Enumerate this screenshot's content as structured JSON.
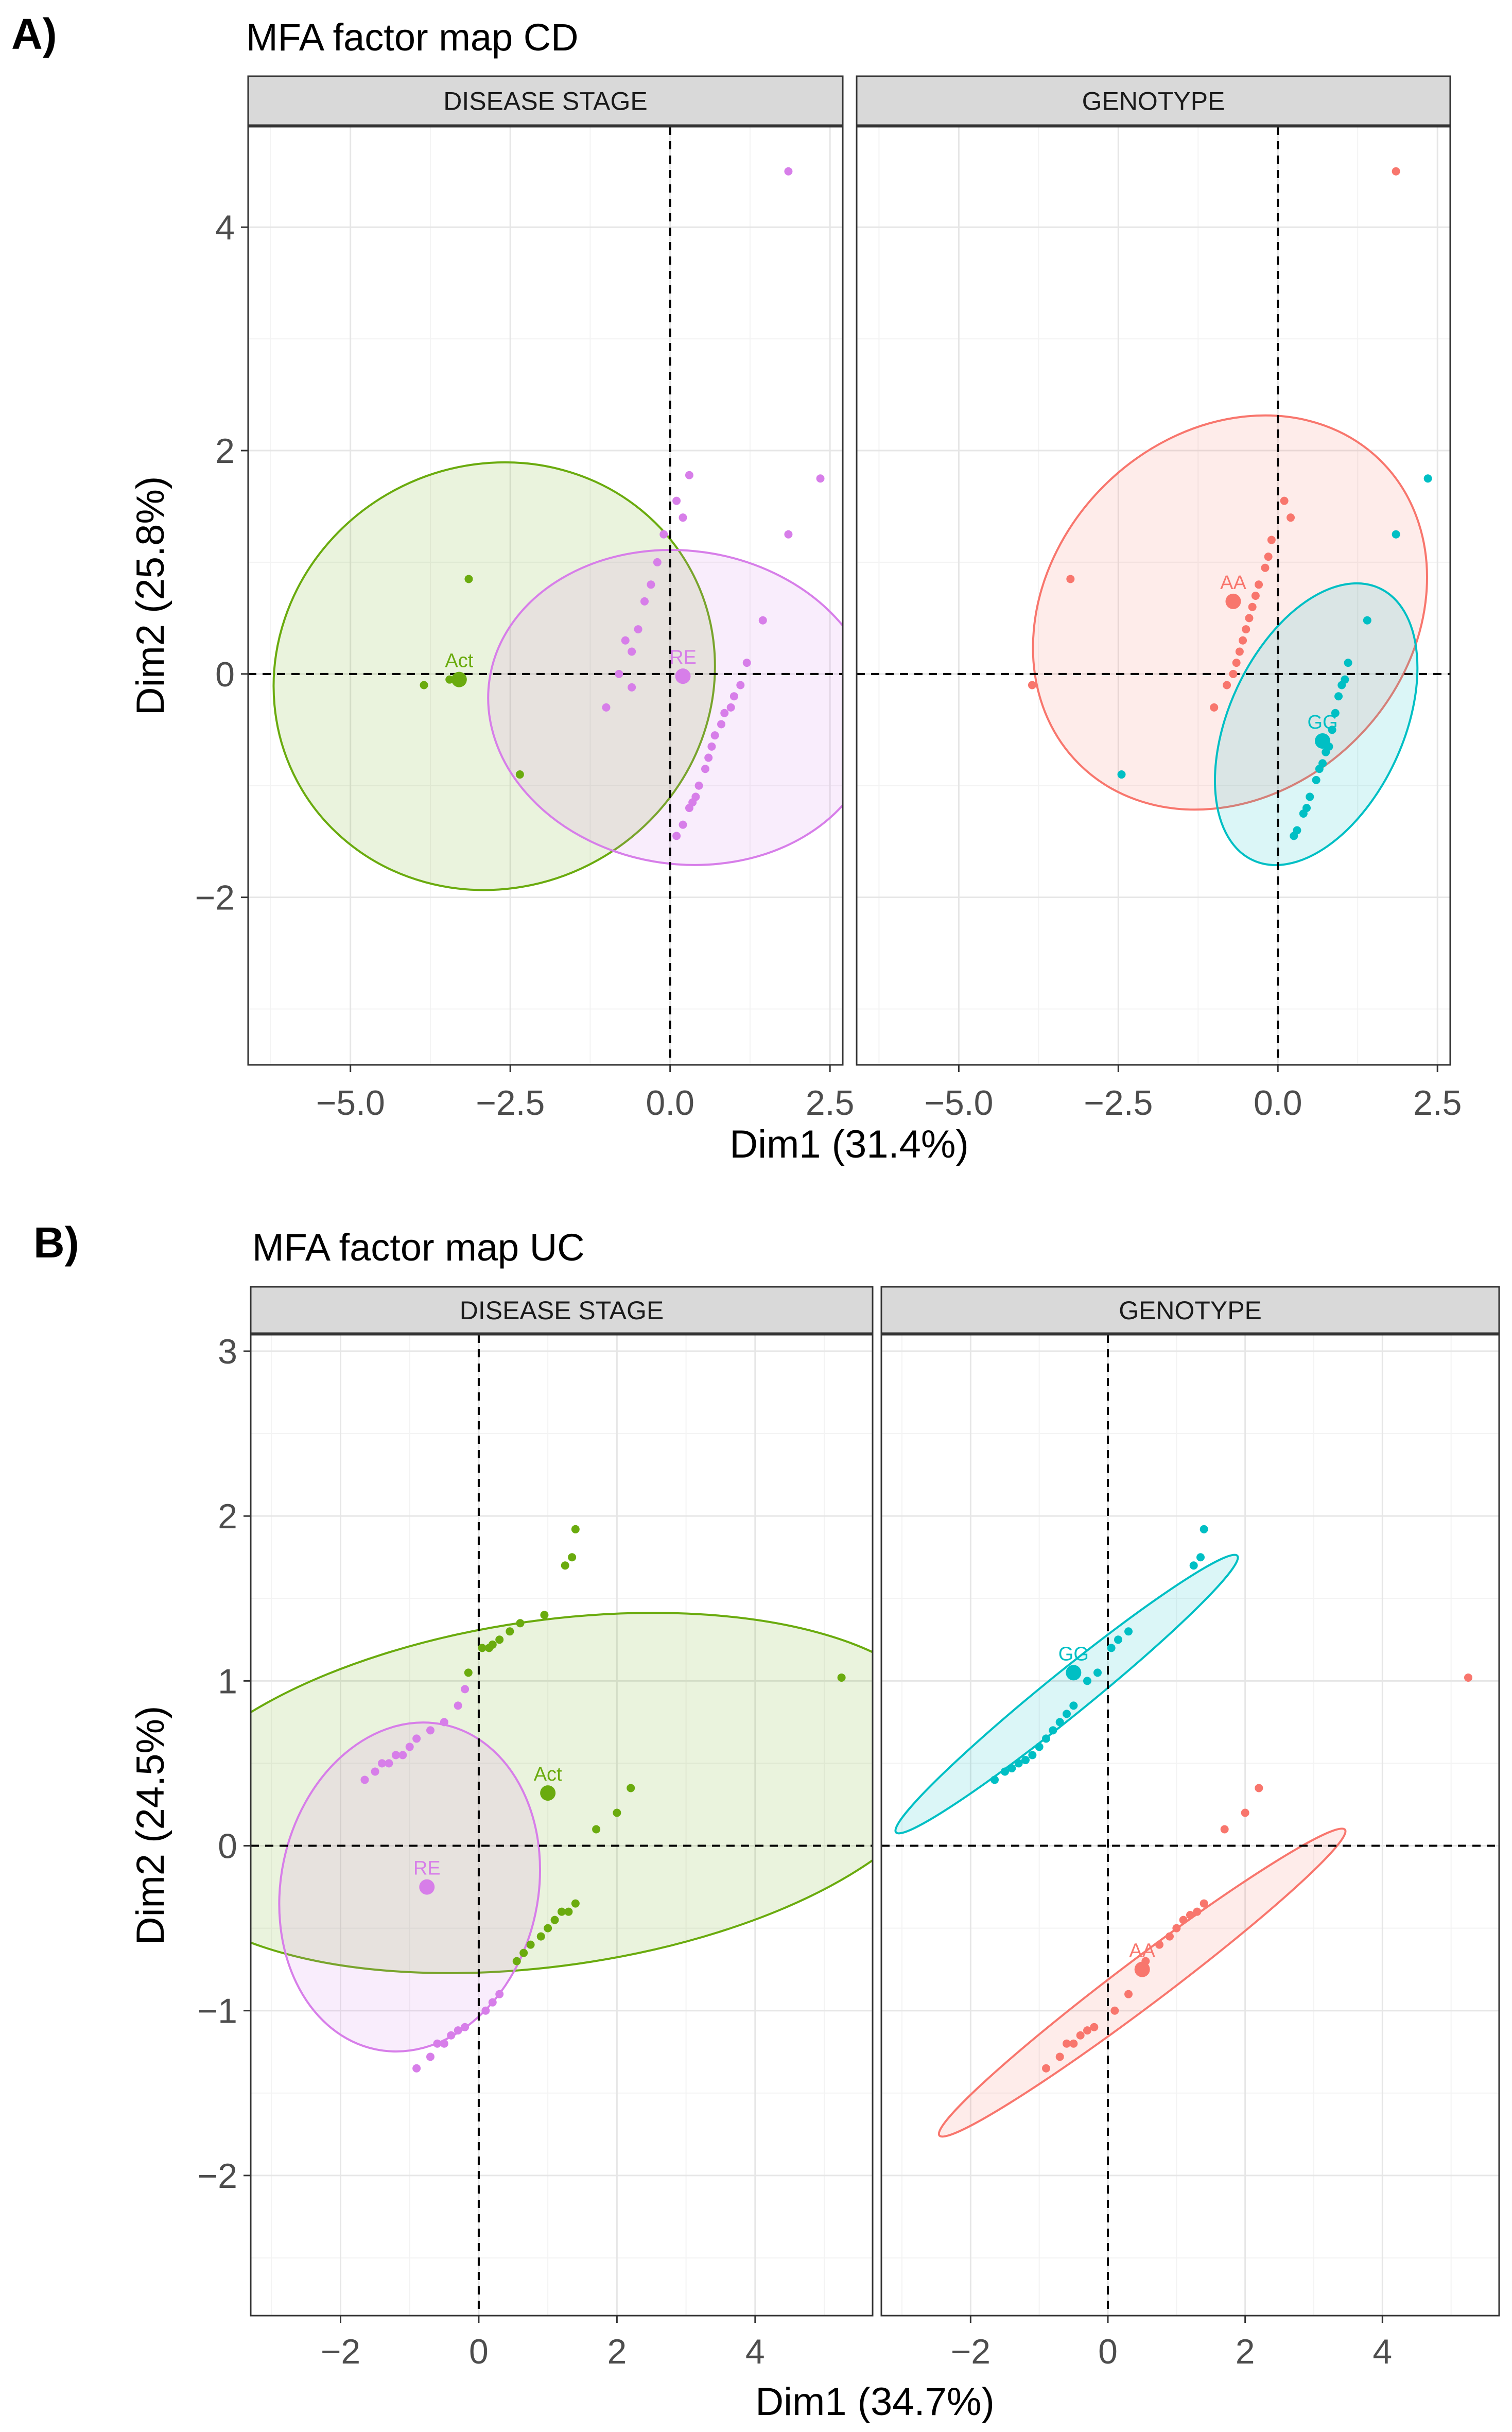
{
  "figure": {
    "panels": [
      {
        "label": "A)",
        "title": "MFA factor map CD"
      },
      {
        "label": "B)",
        "title": "MFA factor map UC"
      }
    ]
  },
  "colors": {
    "Act": "#6aab0e",
    "RE": "#d77ee9",
    "AA": "#f8766d",
    "GG": "#00bfc4",
    "strip_bg": "#d9d9d9",
    "grid_major": "#e6e6e6",
    "grid_minor": "#f3f3f3",
    "axis_text": "#4d4d4d"
  },
  "chart_data": [
    {
      "type": "scatter",
      "title": "MFA factor map CD",
      "xlabel": "Dim1 (31.4%)",
      "ylabel": "Dim2 (25.8%)",
      "xlim": [
        -6.6,
        2.7
      ],
      "ylim": [
        -3.5,
        4.9
      ],
      "xticks": [
        -5.0,
        -2.5,
        0.0,
        2.5
      ],
      "xtick_labels": [
        "−5.0",
        "−2.5",
        "0.0",
        "2.5"
      ],
      "yticks": [
        -2,
        0,
        2,
        4
      ],
      "ytick_labels": [
        "−2",
        "0",
        "2",
        "4"
      ],
      "facets": [
        {
          "strip": "DISEASE STAGE",
          "groups": [
            {
              "name": "Act",
              "color_key": "Act",
              "center": [
                -3.3,
                -0.05
              ],
              "ellipse": {
                "cx": -2.75,
                "cy": -0.02,
                "rx": 3.3,
                "ry": 2.0,
                "angle": -62
              },
              "points": [
                [
                  -3.85,
                  -0.1
                ],
                [
                  -3.15,
                  0.85
                ],
                [
                  -2.35,
                  -0.9
                ],
                [
                  -3.45,
                  -0.05
                ]
              ]
            },
            {
              "name": "RE",
              "color_key": "RE",
              "center": [
                0.2,
                -0.02
              ],
              "ellipse": {
                "cx": 0.2,
                "cy": -0.3,
                "rx": 2.45,
                "ry": 1.75,
                "angle": 82
              },
              "points": [
                [
                  1.85,
                  4.5
                ],
                [
                  2.35,
                  1.75
                ],
                [
                  0.3,
                  1.78
                ],
                [
                  1.85,
                  1.25
                ],
                [
                  1.45,
                  0.48
                ],
                [
                  -1.0,
                  -0.3
                ],
                [
                  -0.6,
                  -0.12
                ],
                [
                  -0.8,
                  0.0
                ],
                [
                  -0.5,
                  0.4
                ],
                [
                  -0.3,
                  0.8
                ],
                [
                  -0.1,
                  1.25
                ],
                [
                  0.1,
                  1.55
                ],
                [
                  0.2,
                  1.4
                ],
                [
                  -0.7,
                  0.3
                ],
                [
                  -0.4,
                  0.65
                ],
                [
                  -0.2,
                  1.0
                ],
                [
                  -0.6,
                  0.2
                ],
                [
                  1.2,
                  0.1
                ],
                [
                  1.1,
                  -0.1
                ],
                [
                  0.95,
                  -0.3
                ],
                [
                  0.8,
                  -0.45
                ],
                [
                  0.65,
                  -0.65
                ],
                [
                  0.55,
                  -0.85
                ],
                [
                  0.45,
                  -1.0
                ],
                [
                  0.3,
                  -1.2
                ],
                [
                  0.2,
                  -1.35
                ],
                [
                  0.1,
                  -1.45
                ],
                [
                  0.85,
                  -0.35
                ],
                [
                  0.7,
                  -0.55
                ],
                [
                  0.6,
                  -0.75
                ],
                [
                  1.0,
                  -0.2
                ],
                [
                  0.4,
                  -1.1
                ],
                [
                  0.35,
                  -1.15
                ]
              ]
            }
          ]
        },
        {
          "strip": "GENOTYPE",
          "groups": [
            {
              "name": "AA",
              "color_key": "AA",
              "center": [
                -0.7,
                0.65
              ],
              "ellipse": {
                "cx": -0.75,
                "cy": 0.55,
                "rx": 3.35,
                "ry": 1.6,
                "angle": 45
              },
              "points": [
                [
                  1.85,
                  4.5
                ],
                [
                  -3.25,
                  0.85
                ],
                [
                  -3.85,
                  -0.1
                ],
                [
                  0.1,
                  1.55
                ],
                [
                  0.2,
                  1.4
                ],
                [
                  -0.1,
                  1.2
                ],
                [
                  -0.2,
                  0.95
                ],
                [
                  -0.3,
                  0.8
                ],
                [
                  -0.4,
                  0.6
                ],
                [
                  -0.5,
                  0.4
                ],
                [
                  -0.6,
                  0.2
                ],
                [
                  -0.7,
                  0.0
                ],
                [
                  -0.8,
                  -0.1
                ],
                [
                  -1.0,
                  -0.3
                ],
                [
                  -0.45,
                  0.5
                ],
                [
                  -0.55,
                  0.3
                ],
                [
                  -0.65,
                  0.1
                ],
                [
                  -0.35,
                  0.7
                ],
                [
                  -0.15,
                  1.05
                ]
              ]
            },
            {
              "name": "GG",
              "color_key": "GG",
              "center": [
                0.7,
                -0.6
              ],
              "ellipse": {
                "cx": 0.6,
                "cy": -0.45,
                "rx": 2.35,
                "ry": 0.78,
                "angle": 65
              },
              "points": [
                [
                  2.35,
                  1.75
                ],
                [
                  1.85,
                  1.25
                ],
                [
                  1.4,
                  0.48
                ],
                [
                  -2.45,
                  -0.9
                ],
                [
                  1.1,
                  0.1
                ],
                [
                  1.05,
                  -0.05
                ],
                [
                  0.95,
                  -0.2
                ],
                [
                  0.9,
                  -0.35
                ],
                [
                  0.85,
                  -0.5
                ],
                [
                  0.8,
                  -0.65
                ],
                [
                  0.7,
                  -0.8
                ],
                [
                  0.6,
                  -0.95
                ],
                [
                  0.5,
                  -1.1
                ],
                [
                  0.4,
                  -1.25
                ],
                [
                  0.3,
                  -1.4
                ],
                [
                  0.25,
                  -1.45
                ],
                [
                  1.0,
                  -0.1
                ],
                [
                  0.75,
                  -0.7
                ],
                [
                  0.65,
                  -0.85
                ],
                [
                  0.45,
                  -1.2
                ]
              ]
            }
          ]
        }
      ]
    },
    {
      "type": "scatter",
      "title": "MFA factor map UC",
      "xlabel": "Dim1 (34.7%)",
      "ylabel": "Dim2 (24.5%)",
      "xlim": [
        -3.3,
        5.7
      ],
      "ylim": [
        -2.85,
        3.1
      ],
      "xticks": [
        -2,
        0,
        2,
        4
      ],
      "xtick_labels": [
        "−2",
        "0",
        "2",
        "4"
      ],
      "yticks": [
        -2,
        -1,
        0,
        1,
        2,
        3
      ],
      "ytick_labels": [
        "−2",
        "−1",
        "0",
        "1",
        "2",
        "3"
      ],
      "facets": [
        {
          "strip": "DISEASE STAGE",
          "groups": [
            {
              "name": "Act",
              "color_key": "Act",
              "center": [
                1.0,
                0.32
              ],
              "ellipse": {
                "cx": 1.05,
                "cy": 0.32,
                "rx": 2.5,
                "ry": 2.45,
                "angle": -82
              },
              "points": [
                [
                  5.25,
                  1.02
                ],
                [
                  1.4,
                  1.92
                ],
                [
                  1.35,
                  1.75
                ],
                [
                  1.25,
                  1.7
                ],
                [
                  0.95,
                  1.4
                ],
                [
                  0.6,
                  1.35
                ],
                [
                  0.45,
                  1.3
                ],
                [
                  0.3,
                  1.25
                ],
                [
                  0.15,
                  1.2
                ],
                [
                  0.05,
                  1.2
                ],
                [
                  -0.15,
                  1.05
                ],
                [
                  2.2,
                  0.35
                ],
                [
                  2.0,
                  0.2
                ],
                [
                  1.7,
                  0.1
                ],
                [
                  1.4,
                  -0.35
                ],
                [
                  1.3,
                  -0.4
                ],
                [
                  1.1,
                  -0.45
                ],
                [
                  1.0,
                  -0.5
                ],
                [
                  0.9,
                  -0.55
                ],
                [
                  0.75,
                  -0.6
                ],
                [
                  0.65,
                  -0.65
                ],
                [
                  0.55,
                  -0.7
                ],
                [
                  1.2,
                  -0.4
                ],
                [
                  0.2,
                  1.22
                ]
              ]
            },
            {
              "name": "RE",
              "color_key": "RE",
              "center": [
                -0.75,
                -0.25
              ],
              "ellipse": {
                "cx": -1.0,
                "cy": -0.25,
                "rx": 2.4,
                "ry": 0.78,
                "angle": 78
              },
              "points": [
                [
                  -0.2,
                  0.95
                ],
                [
                  -0.3,
                  0.85
                ],
                [
                  -0.5,
                  0.75
                ],
                [
                  -0.7,
                  0.7
                ],
                [
                  -0.9,
                  0.65
                ],
                [
                  -1.1,
                  0.55
                ],
                [
                  -1.3,
                  0.5
                ],
                [
                  -1.5,
                  0.45
                ],
                [
                  -1.65,
                  0.4
                ],
                [
                  -1.0,
                  0.6
                ],
                [
                  -1.2,
                  0.55
                ],
                [
                  -1.4,
                  0.5
                ],
                [
                  0.3,
                  -0.9
                ],
                [
                  0.2,
                  -0.95
                ],
                [
                  0.1,
                  -1.0
                ],
                [
                  -0.2,
                  -1.1
                ],
                [
                  -0.4,
                  -1.15
                ],
                [
                  -0.6,
                  -1.2
                ],
                [
                  -0.7,
                  -1.28
                ],
                [
                  -0.9,
                  -1.35
                ],
                [
                  -0.5,
                  -1.2
                ],
                [
                  -0.3,
                  -1.12
                ]
              ]
            }
          ]
        },
        {
          "strip": "GENOTYPE",
          "groups": [
            {
              "name": "GG",
              "color_key": "GG",
              "center": [
                -0.5,
                1.05
              ],
              "ellipse": {
                "cx": -0.6,
                "cy": 0.92,
                "rx": 3.2,
                "ry": 0.13,
                "angle": 39
              },
              "points": [
                [
                  1.4,
                  1.92
                ],
                [
                  1.35,
                  1.75
                ],
                [
                  1.25,
                  1.7
                ],
                [
                  0.3,
                  1.3
                ],
                [
                  0.15,
                  1.25
                ],
                [
                  0.05,
                  1.2
                ],
                [
                  -0.15,
                  1.05
                ],
                [
                  -0.3,
                  1.0
                ],
                [
                  -0.5,
                  0.85
                ],
                [
                  -0.7,
                  0.75
                ],
                [
                  -0.9,
                  0.65
                ],
                [
                  -1.1,
                  0.55
                ],
                [
                  -1.3,
                  0.5
                ],
                [
                  -1.5,
                  0.45
                ],
                [
                  -1.65,
                  0.4
                ],
                [
                  -1.0,
                  0.6
                ],
                [
                  -1.2,
                  0.52
                ],
                [
                  -1.4,
                  0.47
                ],
                [
                  -0.8,
                  0.7
                ],
                [
                  -0.6,
                  0.8
                ]
              ]
            },
            {
              "name": "AA",
              "color_key": "AA",
              "center": [
                0.5,
                -0.75
              ],
              "ellipse": {
                "cx": 0.5,
                "cy": -0.83,
                "rx": 3.7,
                "ry": 0.14,
                "angle": 37
              },
              "points": [
                [
                  5.25,
                  1.02
                ],
                [
                  2.2,
                  0.35
                ],
                [
                  2.0,
                  0.2
                ],
                [
                  1.7,
                  0.1
                ],
                [
                  1.4,
                  -0.35
                ],
                [
                  1.3,
                  -0.4
                ],
                [
                  1.1,
                  -0.45
                ],
                [
                  1.0,
                  -0.5
                ],
                [
                  0.9,
                  -0.55
                ],
                [
                  0.75,
                  -0.6
                ],
                [
                  0.55,
                  -0.7
                ],
                [
                  0.3,
                  -0.9
                ],
                [
                  0.1,
                  -1.0
                ],
                [
                  -0.2,
                  -1.1
                ],
                [
                  -0.4,
                  -1.15
                ],
                [
                  -0.6,
                  -1.2
                ],
                [
                  -0.7,
                  -1.28
                ],
                [
                  -0.9,
                  -1.35
                ],
                [
                  -0.5,
                  -1.2
                ],
                [
                  -0.3,
                  -1.12
                ],
                [
                  1.2,
                  -0.42
                ]
              ]
            }
          ]
        }
      ]
    }
  ]
}
